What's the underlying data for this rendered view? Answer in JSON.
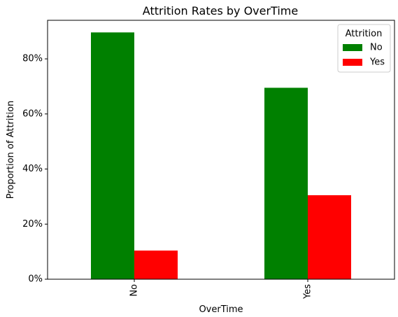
{
  "chart_data": {
    "type": "bar",
    "title": "Attrition Rates by OverTime",
    "xlabel": "OverTime",
    "ylabel": "Proportion of Attrition",
    "categories": [
      "No",
      "Yes"
    ],
    "series": [
      {
        "name": "No",
        "values": [
          0.896,
          0.695
        ],
        "color": "#008000"
      },
      {
        "name": "Yes",
        "values": [
          0.104,
          0.305
        ],
        "color": "#ff0000"
      }
    ],
    "ylim": [
      0,
      0.94
    ],
    "yticks": [
      0,
      0.2,
      0.4,
      0.6,
      0.8
    ],
    "ytick_labels": [
      "0%",
      "20%",
      "40%",
      "60%",
      "80%"
    ],
    "legend": {
      "title": "Attrition",
      "placement": "top-right"
    },
    "grid": false,
    "xtick_rotation": 90
  }
}
